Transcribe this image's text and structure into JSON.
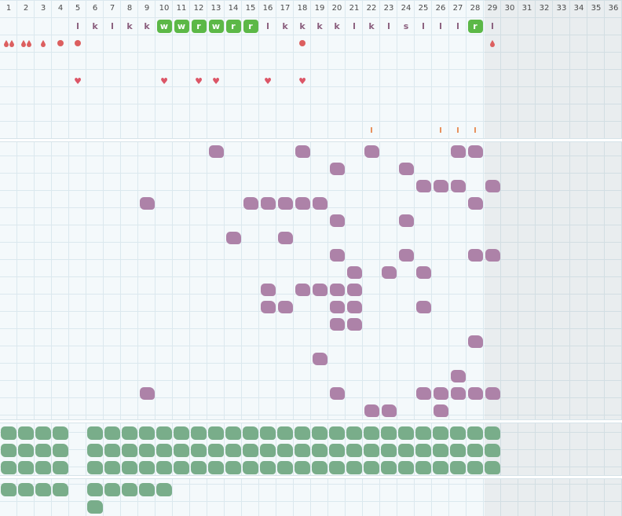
{
  "days": [
    "1",
    "2",
    "3",
    "4",
    "5",
    "6",
    "7",
    "8",
    "9",
    "10",
    "11",
    "12",
    "13",
    "14",
    "15",
    "16",
    "17",
    "18",
    "19",
    "20",
    "21",
    "22",
    "23",
    "24",
    "25",
    "26",
    "27",
    "28",
    "29",
    "30",
    "31",
    "32",
    "33",
    "34",
    "35",
    "36"
  ],
  "current_day": "29",
  "colors": {
    "grid_line": "#dbe8ee",
    "background": "#f4f9fb",
    "letter": "#8a5e7d",
    "badge_green": "#5cb847",
    "blob_purple": "#ad82a8",
    "blob_green": "#79ad8a",
    "heart": "#dc5667",
    "dot": "#dc5f5f",
    "tick": "#e8925e"
  },
  "letter_row": [
    {
      "day": "5",
      "text": "l",
      "style": "plain"
    },
    {
      "day": "6",
      "text": "k",
      "style": "plain"
    },
    {
      "day": "7",
      "text": "l",
      "style": "plain"
    },
    {
      "day": "8",
      "text": "k",
      "style": "plain"
    },
    {
      "day": "9",
      "text": "k",
      "style": "plain"
    },
    {
      "day": "10",
      "text": "w",
      "style": "badge"
    },
    {
      "day": "11",
      "text": "w",
      "style": "badge"
    },
    {
      "day": "12",
      "text": "r",
      "style": "badge"
    },
    {
      "day": "13",
      "text": "w",
      "style": "badge"
    },
    {
      "day": "14",
      "text": "r",
      "style": "badge"
    },
    {
      "day": "15",
      "text": "r",
      "style": "badge"
    },
    {
      "day": "16",
      "text": "l",
      "style": "plain"
    },
    {
      "day": "17",
      "text": "k",
      "style": "plain"
    },
    {
      "day": "18",
      "text": "k",
      "style": "plain"
    },
    {
      "day": "19",
      "text": "k",
      "style": "plain"
    },
    {
      "day": "20",
      "text": "k",
      "style": "plain"
    },
    {
      "day": "21",
      "text": "l",
      "style": "plain"
    },
    {
      "day": "22",
      "text": "k",
      "style": "plain"
    },
    {
      "day": "23",
      "text": "l",
      "style": "plain"
    },
    {
      "day": "24",
      "text": "s",
      "style": "plain"
    },
    {
      "day": "25",
      "text": "l",
      "style": "plain"
    },
    {
      "day": "26",
      "text": "l",
      "style": "plain"
    },
    {
      "day": "27",
      "text": "l",
      "style": "plain"
    },
    {
      "day": "28",
      "text": "r",
      "style": "badge"
    },
    {
      "day": "29",
      "text": "l",
      "style": "plain"
    }
  ],
  "symbol_row": [
    {
      "day": "1",
      "icon": "double-drop-icon"
    },
    {
      "day": "2",
      "icon": "double-drop-icon"
    },
    {
      "day": "3",
      "icon": "drop-icon"
    },
    {
      "day": "4",
      "icon": "dot-icon"
    },
    {
      "day": "5",
      "icon": "dot-icon"
    },
    {
      "day": "18",
      "icon": "dot-icon"
    },
    {
      "day": "29",
      "icon": "drop-icon"
    }
  ],
  "heart_row": {
    "icon": "heart-icon",
    "glyph": "♥",
    "days": [
      "5",
      "10",
      "12",
      "13",
      "16",
      "18"
    ]
  },
  "tick_row": {
    "icon": "tick-mark-icon",
    "days": [
      "22",
      "26",
      "27",
      "28"
    ]
  },
  "purple_grid": [
    [
      "13",
      "18",
      "22",
      "27",
      "28"
    ],
    [
      "20",
      "24"
    ],
    [
      "25",
      "26",
      "27",
      "29"
    ],
    [
      "9",
      "15",
      "16",
      "17",
      "18",
      "19",
      "28"
    ],
    [
      "20",
      "24"
    ],
    [
      "14",
      "17"
    ],
    [
      "20",
      "24",
      "28",
      "29"
    ],
    [
      "21",
      "23",
      "25"
    ],
    [
      "16",
      "18",
      "19",
      "20",
      "21"
    ],
    [
      "16",
      "17",
      "20",
      "21",
      "25"
    ],
    [
      "20",
      "21"
    ],
    [
      "28"
    ],
    [
      "19"
    ],
    [
      "27"
    ],
    [
      "9",
      "20",
      "25",
      "26",
      "27",
      "28",
      "29"
    ],
    [
      "22",
      "23",
      "26"
    ]
  ],
  "green_grid": [
    [
      "1",
      "2",
      "3",
      "4",
      "6",
      "7",
      "8",
      "9",
      "10",
      "11",
      "12",
      "13",
      "14",
      "15",
      "16",
      "17",
      "18",
      "19",
      "20",
      "21",
      "22",
      "23",
      "24",
      "25",
      "26",
      "27",
      "28",
      "29"
    ],
    [
      "1",
      "2",
      "3",
      "4",
      "6",
      "7",
      "8",
      "9",
      "10",
      "11",
      "12",
      "13",
      "14",
      "15",
      "16",
      "17",
      "18",
      "19",
      "20",
      "21",
      "22",
      "23",
      "24",
      "25",
      "26",
      "27",
      "28",
      "29"
    ],
    [
      "1",
      "2",
      "3",
      "4",
      "6",
      "7",
      "8",
      "9",
      "10",
      "11",
      "12",
      "13",
      "14",
      "15",
      "16",
      "17",
      "18",
      "19",
      "20",
      "21",
      "22",
      "23",
      "24",
      "25",
      "26",
      "27",
      "28",
      "29"
    ]
  ],
  "green_grid_bottom": [
    [
      "1",
      "2",
      "3",
      "4",
      "6",
      "7",
      "8",
      "9",
      "10"
    ],
    [
      "6"
    ]
  ]
}
